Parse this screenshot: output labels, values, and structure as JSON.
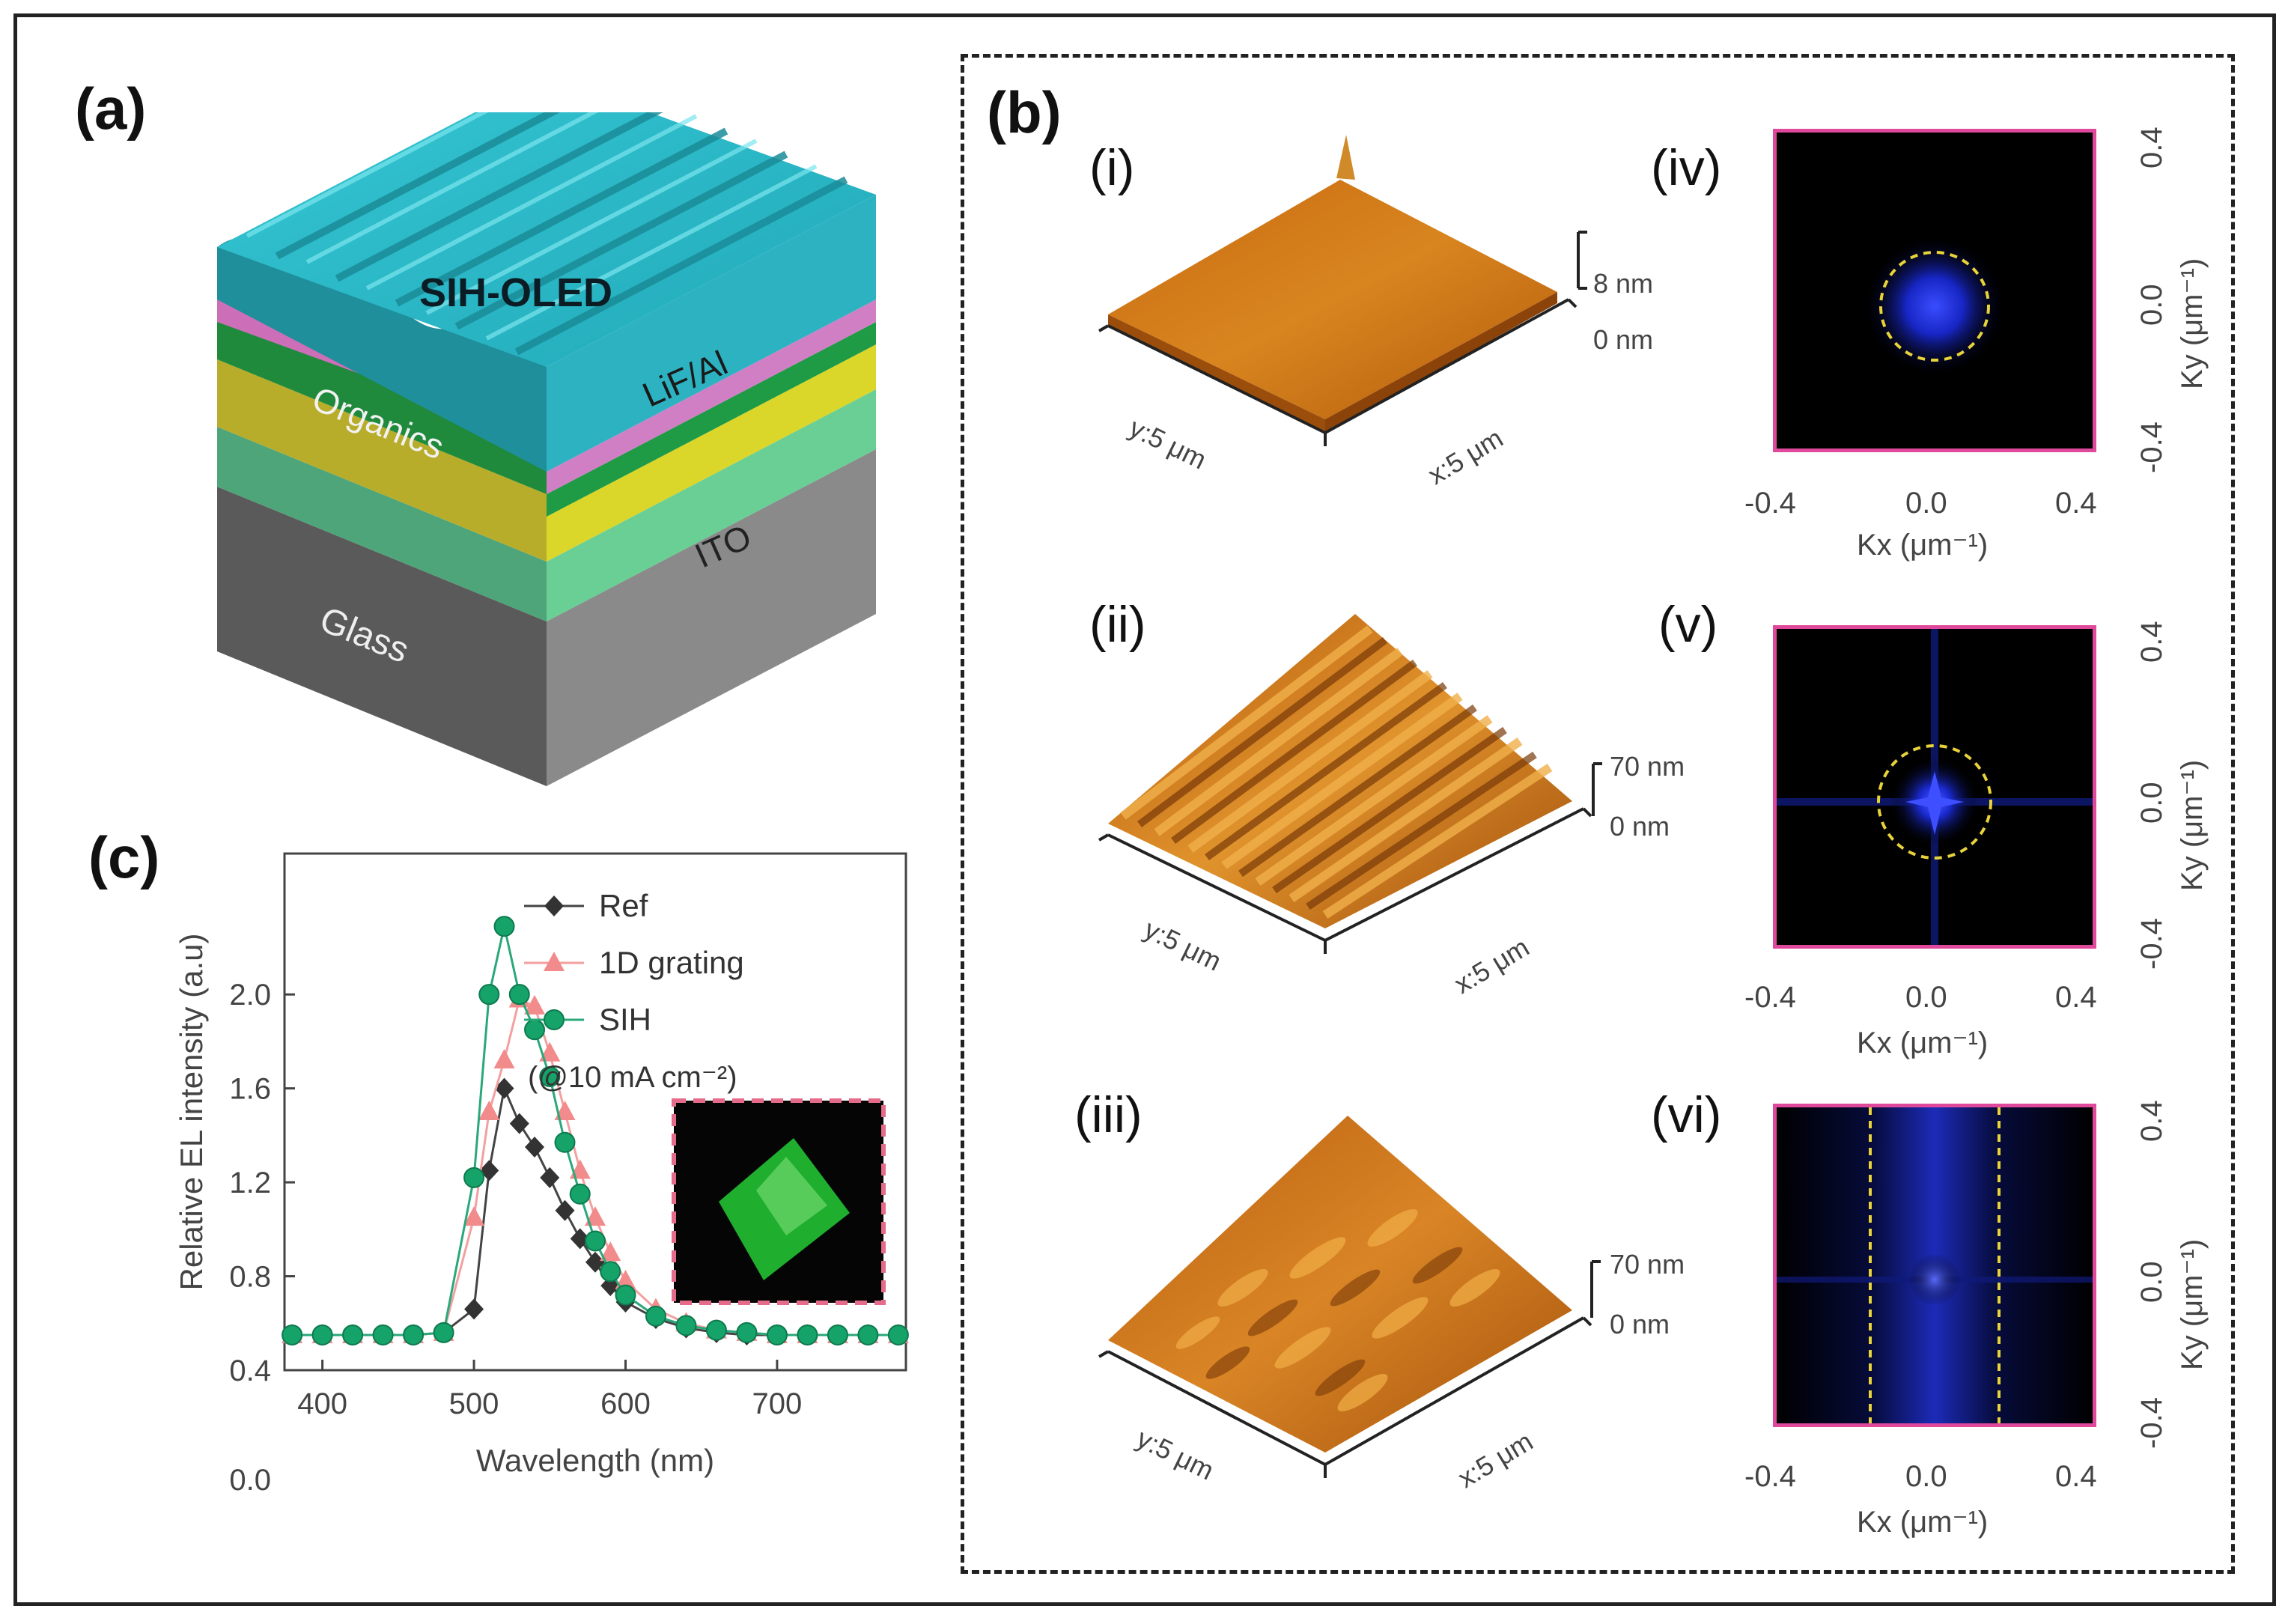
{
  "panel_a": {
    "label": "(a)",
    "layers": {
      "device": "SIH-OLED",
      "cathode": "LiF/Al",
      "organics": "Organics",
      "ito": "ITO",
      "glass": "Glass"
    }
  },
  "panel_b": {
    "label": "(b)",
    "afm": [
      {
        "label": "(i)",
        "z_top": "8 nm",
        "z_bottom": "0 nm",
        "y_axis": "y:5 μm",
        "x_axis": "x:5 μm"
      },
      {
        "label": "(ii)",
        "z_top": "70 nm",
        "z_bottom": "0 nm",
        "y_axis": "y:5 μm",
        "x_axis": "x:5 μm"
      },
      {
        "label": "(iii)",
        "z_top": "70 nm",
        "z_bottom": "0 nm",
        "y_axis": "y:5 μm",
        "x_axis": "x:5 μm"
      }
    ],
    "fft": [
      {
        "label": "(iv)",
        "xlabel": "Kx (μm⁻¹)",
        "ylabel": "Ky (μm⁻¹)",
        "ticks": [
          "-0.4",
          "0.0",
          "0.4"
        ],
        "yticks": [
          "0.4",
          "0.0",
          "-0.4"
        ]
      },
      {
        "label": "(v)",
        "xlabel": "Kx (μm⁻¹)",
        "ylabel": "Ky (μm⁻¹)",
        "ticks": [
          "-0.4",
          "0.0",
          "0.4"
        ],
        "yticks": [
          "0.4",
          "0.0",
          "-0.4"
        ]
      },
      {
        "label": "(vi)",
        "xlabel": "Kx (μm⁻¹)",
        "ylabel": "Ky (μm⁻¹)",
        "ticks": [
          "-0.4",
          "0.0",
          "0.4"
        ],
        "yticks": [
          "0.4",
          "0.0",
          "-0.4"
        ]
      }
    ]
  },
  "panel_c": {
    "label": "(c)",
    "legend_note": "(@10 mA cm⁻²)"
  },
  "colors": {
    "ref": "#333333",
    "grating": "#f28b8b",
    "sih": "#16a36a",
    "fft_border": "#e0499b"
  },
  "chart_data": {
    "type": "line",
    "title": "",
    "xlabel": "Wavelength (nm)",
    "ylabel": "Relative EL intensity (a.u)",
    "xlim": [
      375,
      785
    ],
    "ylim": [
      0.4,
      2.6
    ],
    "xticks": [
      400,
      500,
      600,
      700
    ],
    "yticks": [
      "0.4",
      "0.8",
      "1.2",
      "1.6",
      "2.0"
    ],
    "extra_ytick": "0.0",
    "x": [
      380,
      400,
      420,
      440,
      460,
      480,
      500,
      510,
      520,
      530,
      540,
      550,
      560,
      570,
      580,
      590,
      600,
      620,
      640,
      660,
      680,
      700,
      720,
      740,
      760,
      780
    ],
    "series": [
      {
        "name": "Ref",
        "marker": "diamond",
        "values": [
          0.55,
          0.55,
          0.55,
          0.55,
          0.55,
          0.56,
          0.66,
          1.25,
          1.6,
          1.45,
          1.35,
          1.22,
          1.08,
          0.96,
          0.86,
          0.76,
          0.69,
          0.62,
          0.58,
          0.56,
          0.55,
          0.55,
          0.55,
          0.55,
          0.55,
          0.55
        ]
      },
      {
        "name": "1D grating",
        "marker": "triangle",
        "values": [
          0.55,
          0.55,
          0.55,
          0.55,
          0.55,
          0.56,
          1.05,
          1.5,
          1.72,
          1.98,
          1.95,
          1.75,
          1.5,
          1.25,
          1.05,
          0.9,
          0.78,
          0.66,
          0.6,
          0.57,
          0.56,
          0.55,
          0.55,
          0.55,
          0.55,
          0.55
        ]
      },
      {
        "name": "SIH",
        "marker": "circle",
        "values": [
          0.55,
          0.55,
          0.55,
          0.55,
          0.55,
          0.56,
          1.22,
          2.0,
          2.29,
          2.0,
          1.85,
          1.65,
          1.37,
          1.15,
          0.95,
          0.82,
          0.72,
          0.63,
          0.59,
          0.57,
          0.56,
          0.55,
          0.55,
          0.55,
          0.55,
          0.55
        ]
      }
    ]
  }
}
